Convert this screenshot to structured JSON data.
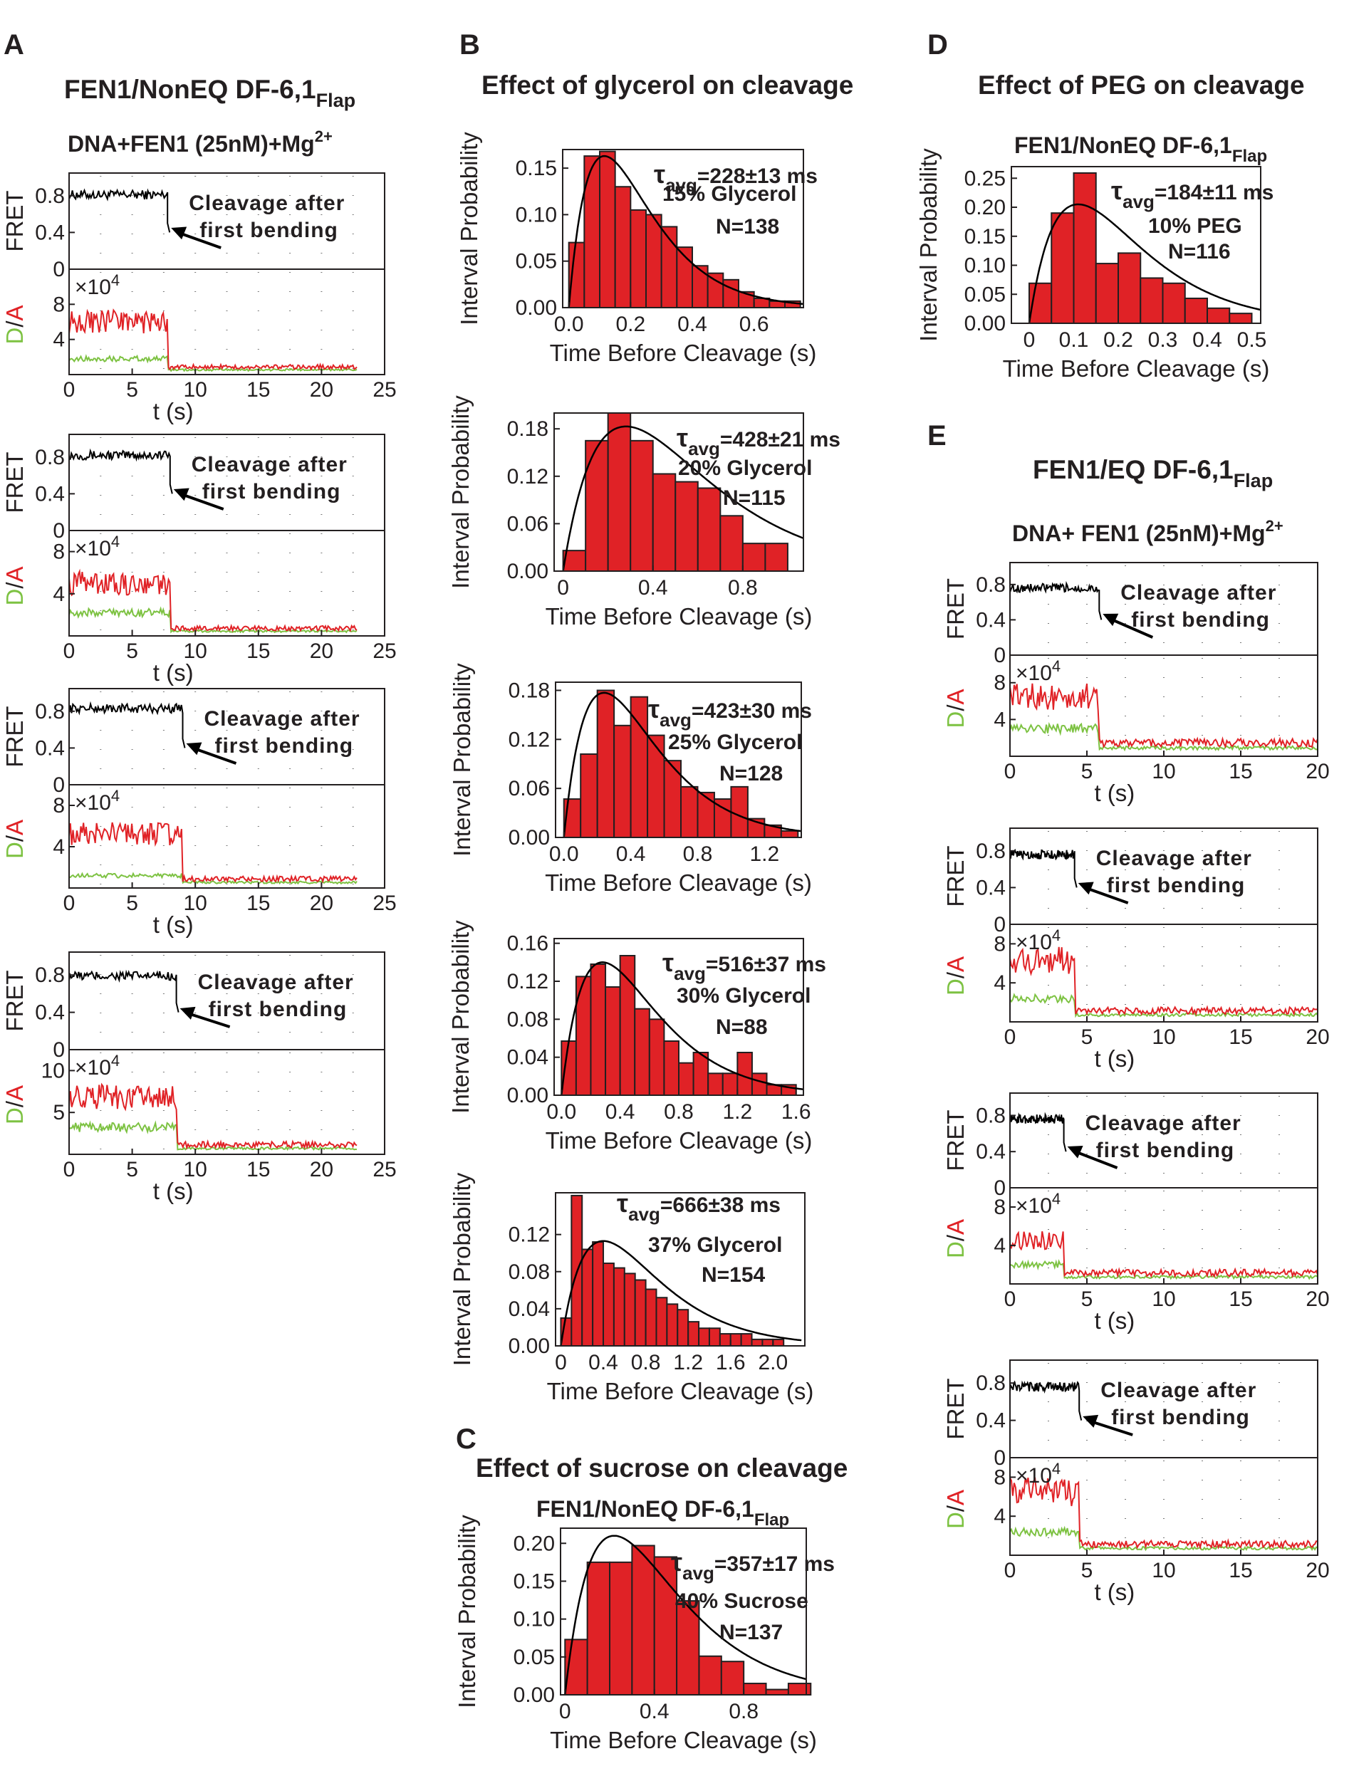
{
  "panel_letters": {
    "A": "A",
    "B": "B",
    "C": "C",
    "D": "D",
    "E": "E"
  },
  "titles": {
    "A": {
      "main": "FEN1/NonEQ DF-6,1",
      "sub": "Flap"
    },
    "A_cond": {
      "main": "DNA+FEN1 (25nM)+Mg",
      "sup": "2+"
    },
    "B": "Effect of glycerol on cleavage",
    "C": "Effect of sucrose on cleavage",
    "C_sub": {
      "main": "FEN1/NonEQ DF-6,1",
      "sub": "Flap"
    },
    "D": "Effect of PEG on cleavage",
    "D_sub": {
      "main": "FEN1/NonEQ DF-6,1",
      "sub": "Flap"
    },
    "E": {
      "main": "FEN1/EQ DF-6,1",
      "sub": "Flap"
    },
    "E_cond": {
      "main": "DNA+ FEN1 (25nM)+Mg",
      "sup": "2+"
    }
  },
  "colors": {
    "ink": "#231f20",
    "hist_fill": "#e02226",
    "acceptor": "#e02226",
    "donor": "#7dc242",
    "fret": "#000000"
  },
  "labels": {
    "fret": "FRET",
    "da_d": "D",
    "da_slash": "/",
    "da_a": "A",
    "t": "t (s)",
    "interval_probability": "Interval Probability",
    "time_before_cleavage": "Time Before Cleavage (s)",
    "x10": "×10",
    "exp4": "4",
    "cleavage_l1": "Cleavage after",
    "cleavage_l2": "first bending",
    "tau": "τ",
    "avg": "avg"
  },
  "chart_data": [
    {
      "id": "B1",
      "type": "bar",
      "condition": "15% Glycerol",
      "tau": "=228±13 ms",
      "n": "N=138",
      "bin_width": 0.05,
      "xlim": [
        -0.02,
        0.76
      ],
      "ylim": [
        0,
        0.17
      ],
      "xticks": [
        "0.0",
        "0.2",
        "0.4",
        "0.6"
      ],
      "xtick_values": [
        0,
        0.2,
        0.4,
        0.6
      ],
      "yticks": [
        "0.00",
        "0.05",
        "0.10",
        "0.15"
      ],
      "ytick_values": [
        0,
        0.05,
        0.1,
        0.15
      ],
      "values": [
        0.07,
        0.163,
        0.168,
        0.13,
        0.105,
        0.1,
        0.087,
        0.065,
        0.045,
        0.037,
        0.03,
        0.017,
        0.01,
        0.007,
        0.007
      ],
      "fit_peak": 0.115,
      "fit_height": 0.163,
      "xlabel": "Time Before Cleavage (s)",
      "ylabel": "Interval Probability"
    },
    {
      "id": "B2",
      "type": "bar",
      "condition": "20% Glycerol",
      "tau": "=428±21 ms",
      "n": "N=115",
      "bin_width": 0.1,
      "xlim": [
        -0.04,
        1.07
      ],
      "ylim": [
        0,
        0.2
      ],
      "xticks": [
        "0",
        "0.4",
        "0.8"
      ],
      "xtick_values": [
        0,
        0.4,
        0.8
      ],
      "yticks": [
        "0.00",
        "0.06",
        "0.12",
        "0.18"
      ],
      "ytick_values": [
        0,
        0.06,
        0.12,
        0.18
      ],
      "values": [
        0.026,
        0.165,
        0.2,
        0.165,
        0.123,
        0.113,
        0.105,
        0.07,
        0.035,
        0.035
      ],
      "fit_peak": 0.28,
      "fit_height": 0.183,
      "xlabel": "Time Before Cleavage (s)",
      "ylabel": "Interval Probability"
    },
    {
      "id": "B3",
      "type": "bar",
      "condition": "25% Glycerol",
      "tau": "=423±30 ms",
      "n": "N=128",
      "bin_width": 0.1,
      "xlim": [
        -0.05,
        1.42
      ],
      "ylim": [
        0,
        0.19
      ],
      "xticks": [
        "0.0",
        "0.4",
        "0.8",
        "1.2"
      ],
      "xtick_values": [
        0,
        0.4,
        0.8,
        1.2
      ],
      "yticks": [
        "0.00",
        "0.06",
        "0.12",
        "0.18"
      ],
      "ytick_values": [
        0,
        0.06,
        0.12,
        0.18
      ],
      "values": [
        0.047,
        0.102,
        0.18,
        0.137,
        0.172,
        0.125,
        0.094,
        0.062,
        0.055,
        0.047,
        0.062,
        0.023,
        0.015,
        0.008
      ],
      "fit_peak": 0.24,
      "fit_height": 0.177,
      "xlabel": "Time Before Cleavage (s)",
      "ylabel": "Interval Probability"
    },
    {
      "id": "B4",
      "type": "bar",
      "condition": "30% Glycerol",
      "tau": "=516±37 ms",
      "n": "N=88",
      "bin_width": 0.1,
      "xlim": [
        -0.05,
        1.65
      ],
      "ylim": [
        0,
        0.165
      ],
      "xticks": [
        "0.0",
        "0.4",
        "0.8",
        "1.2",
        "1.6"
      ],
      "xtick_values": [
        0,
        0.4,
        0.8,
        1.2,
        1.6
      ],
      "yticks": [
        "0.00",
        "0.04",
        "0.08",
        "0.12",
        "0.16"
      ],
      "ytick_values": [
        0,
        0.04,
        0.08,
        0.12,
        0.16
      ],
      "values": [
        0.057,
        0.125,
        0.138,
        0.114,
        0.147,
        0.091,
        0.08,
        0.057,
        0.034,
        0.045,
        0.023,
        0.023,
        0.045,
        0.023,
        0.011,
        0.011
      ],
      "fit_peak": 0.28,
      "fit_height": 0.14,
      "xlabel": "Time Before Cleavage (s)",
      "ylabel": "Interval Probability"
    },
    {
      "id": "B5",
      "type": "bar",
      "condition": "37% Glycerol",
      "tau": "=666±38 ms",
      "n": "N=154",
      "bin_width": 0.1,
      "xlim": [
        -0.05,
        2.3
      ],
      "ylim": [
        0,
        0.165
      ],
      "xticks": [
        "0",
        "0.4",
        "0.8",
        "1.2",
        "1.6",
        "2.0"
      ],
      "xtick_values": [
        0,
        0.4,
        0.8,
        1.2,
        1.6,
        2.0
      ],
      "yticks": [
        "0.00",
        "0.04",
        "0.08",
        "0.12"
      ],
      "ytick_values": [
        0,
        0.04,
        0.08,
        0.12
      ],
      "values": [
        0.03,
        0.162,
        0.104,
        0.112,
        0.089,
        0.084,
        0.078,
        0.071,
        0.061,
        0.052,
        0.045,
        0.039,
        0.026,
        0.019,
        0.019,
        0.013,
        0.013,
        0.013,
        0.007,
        0.007,
        0.007
      ],
      "fit_peak": 0.4,
      "fit_height": 0.113,
      "xlabel": "Time Before Cleavage (s)",
      "ylabel": "Interval Probability"
    },
    {
      "id": "C",
      "type": "bar",
      "condition": "40% Sucrose",
      "tau": "=357±17 ms",
      "n": "N=137",
      "bin_width": 0.1,
      "xlim": [
        -0.02,
        1.08
      ],
      "ylim": [
        0,
        0.22
      ],
      "xticks": [
        "0",
        "0.4",
        "0.8"
      ],
      "xtick_values": [
        0,
        0.4,
        0.8
      ],
      "yticks": [
        "0.00",
        "0.05",
        "0.10",
        "0.15",
        "0.20"
      ],
      "ytick_values": [
        0,
        0.05,
        0.1,
        0.15,
        0.2
      ],
      "values": [
        0.073,
        0.175,
        0.175,
        0.197,
        0.182,
        0.124,
        0.051,
        0.044,
        0.015,
        0.007,
        0.015
      ],
      "fit_peak": 0.22,
      "fit_height": 0.21,
      "xlabel": "Time Before Cleavage (s)",
      "ylabel": "Interval Probability"
    },
    {
      "id": "D",
      "type": "bar",
      "condition": "10% PEG",
      "tau": "=184±11 ms",
      "n": "N=116",
      "bin_width": 0.05,
      "xlim": [
        -0.04,
        0.52
      ],
      "ylim": [
        0,
        0.27
      ],
      "xticks": [
        "0",
        "0.1",
        "0.2",
        "0.3",
        "0.4",
        "0.5"
      ],
      "xtick_values": [
        0,
        0.1,
        0.2,
        0.3,
        0.4,
        0.5
      ],
      "yticks": [
        "0.00",
        "0.05",
        "0.10",
        "0.15",
        "0.20",
        "0.25"
      ],
      "ytick_values": [
        0,
        0.05,
        0.1,
        0.15,
        0.2,
        0.25
      ],
      "values": [
        0.069,
        0.19,
        0.259,
        0.103,
        0.121,
        0.078,
        0.069,
        0.043,
        0.026,
        0.017
      ],
      "fit_peak": 0.11,
      "fit_height": 0.205,
      "xlabel": "Time Before Cleavage (s)",
      "ylabel": "Interval Probability"
    },
    {
      "id": "A1",
      "type": "line",
      "xlim": [
        0,
        25
      ],
      "xticks": [
        "0",
        "5",
        "10",
        "15",
        "20",
        "25"
      ],
      "xtick_values": [
        0,
        5,
        10,
        15,
        20,
        25
      ],
      "fret_yticks": [
        "0",
        "0.4",
        "0.8"
      ],
      "fret_ytick_values": [
        0,
        0.4,
        0.8
      ],
      "da_yticks": [
        "4",
        "8"
      ],
      "da_ytick_values": [
        4,
        8
      ],
      "da_ymax": 12,
      "fret_level": 0.81,
      "cleave_t": 7.8,
      "acceptor_level": 6.0,
      "donor_level": 1.8,
      "baseline": 0.6,
      "trace_end": 22.8
    },
    {
      "id": "A2",
      "type": "line",
      "xlim": [
        0,
        25
      ],
      "xticks": [
        "0",
        "5",
        "10",
        "15",
        "20",
        "25"
      ],
      "xtick_values": [
        0,
        5,
        10,
        15,
        20,
        25
      ],
      "fret_yticks": [
        "0",
        "0.4",
        "0.8"
      ],
      "fret_ytick_values": [
        0,
        0.4,
        0.8
      ],
      "da_yticks": [
        "4",
        "8"
      ],
      "da_ytick_values": [
        4,
        8
      ],
      "da_ymax": 10,
      "fret_level": 0.82,
      "cleave_t": 8.0,
      "acceptor_level": 5.0,
      "donor_level": 2.2,
      "baseline": 0.5,
      "trace_end": 22.8
    },
    {
      "id": "A3",
      "type": "line",
      "xlim": [
        0,
        25
      ],
      "xticks": [
        "0",
        "5",
        "10",
        "15",
        "20",
        "25"
      ],
      "xtick_values": [
        0,
        5,
        10,
        15,
        20,
        25
      ],
      "fret_yticks": [
        "0",
        "0.4",
        "0.8"
      ],
      "fret_ytick_values": [
        0,
        0.4,
        0.8
      ],
      "da_yticks": [
        "4",
        "8"
      ],
      "da_ytick_values": [
        4,
        8
      ],
      "da_ymax": 10,
      "fret_level": 0.83,
      "cleave_t": 9.0,
      "acceptor_level": 5.2,
      "donor_level": 1.2,
      "baseline": 0.6,
      "trace_end": 22.8
    },
    {
      "id": "A4",
      "type": "line",
      "xlim": [
        0,
        25
      ],
      "xticks": [
        "0",
        "5",
        "10",
        "15",
        "20",
        "25"
      ],
      "xtick_values": [
        0,
        5,
        10,
        15,
        20,
        25
      ],
      "fret_yticks": [
        "0",
        "0.4",
        "0.8"
      ],
      "fret_ytick_values": [
        0,
        0.4,
        0.8
      ],
      "da_yticks": [
        "5",
        "10"
      ],
      "da_ytick_values": [
        5,
        10
      ],
      "da_ymax": 12.5,
      "fret_level": 0.79,
      "cleave_t": 8.5,
      "acceptor_level": 6.8,
      "donor_level": 3.2,
      "baseline": 0.8,
      "trace_end": 22.8
    },
    {
      "id": "E1",
      "type": "line",
      "xlim": [
        0,
        20
      ],
      "xticks": [
        "0",
        "5",
        "10",
        "15",
        "20"
      ],
      "xtick_values": [
        0,
        5,
        10,
        15,
        20
      ],
      "fret_yticks": [
        "0",
        "0.4",
        "0.8"
      ],
      "fret_ytick_values": [
        0,
        0.4,
        0.8
      ],
      "da_yticks": [
        "4",
        "8"
      ],
      "da_ytick_values": [
        4,
        8
      ],
      "da_ymax": 11,
      "fret_level": 0.76,
      "cleave_t": 5.8,
      "acceptor_level": 6.5,
      "donor_level": 3.0,
      "baseline": 1.0,
      "trace_end": 20
    },
    {
      "id": "E2",
      "type": "line",
      "xlim": [
        0,
        20
      ],
      "xticks": [
        "0",
        "5",
        "10",
        "15",
        "20"
      ],
      "xtick_values": [
        0,
        5,
        10,
        15,
        20
      ],
      "fret_yticks": [
        "0",
        "0.4",
        "0.8"
      ],
      "fret_ytick_values": [
        0,
        0.4,
        0.8
      ],
      "da_yticks": [
        "4",
        "8"
      ],
      "da_ytick_values": [
        4,
        8
      ],
      "da_ymax": 10,
      "fret_level": 0.76,
      "cleave_t": 4.2,
      "acceptor_level": 6.3,
      "donor_level": 2.4,
      "baseline": 0.8,
      "trace_end": 20
    },
    {
      "id": "E3",
      "type": "line",
      "xlim": [
        0,
        20
      ],
      "xticks": [
        "0",
        "5",
        "10",
        "15",
        "20"
      ],
      "xtick_values": [
        0,
        5,
        10,
        15,
        20
      ],
      "fret_yticks": [
        "0",
        "0.4",
        "0.8"
      ],
      "fret_ytick_values": [
        0,
        0.4,
        0.8
      ],
      "da_yticks": [
        "4",
        "8"
      ],
      "da_ytick_values": [
        4,
        8
      ],
      "da_ymax": 10,
      "fret_level": 0.76,
      "cleave_t": 3.5,
      "acceptor_level": 4.6,
      "donor_level": 2.0,
      "baseline": 0.8,
      "trace_end": 20
    },
    {
      "id": "E4",
      "type": "line",
      "xlim": [
        0,
        20
      ],
      "xticks": [
        "0",
        "5",
        "10",
        "15",
        "20"
      ],
      "xtick_values": [
        0,
        5,
        10,
        15,
        20
      ],
      "fret_yticks": [
        "0",
        "0.4",
        "0.8"
      ],
      "fret_ytick_values": [
        0,
        0.4,
        0.8
      ],
      "da_yticks": [
        "4",
        "8"
      ],
      "da_ytick_values": [
        4,
        8
      ],
      "da_ymax": 10,
      "fret_level": 0.76,
      "cleave_t": 4.5,
      "acceptor_level": 6.5,
      "donor_level": 2.4,
      "baseline": 0.8,
      "trace_end": 20
    }
  ]
}
